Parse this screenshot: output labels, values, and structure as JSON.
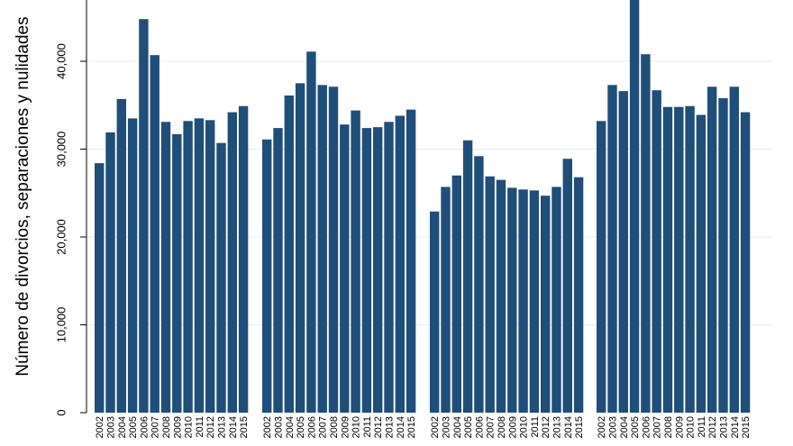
{
  "chart_data": {
    "type": "bar",
    "ylabel": "Número de divorcios, separaciones y nulidades",
    "xlabel": "",
    "title": "",
    "ylim": [
      0,
      47000
    ],
    "yticks": [
      0,
      10000,
      20000,
      30000,
      40000
    ],
    "ytick_labels": [
      "0",
      "10,000",
      "20,000",
      "30,000",
      "40,000"
    ],
    "grid": true,
    "bar_color": "#1f4e79",
    "grid_color": "#e3ecf2",
    "categories": [
      "2002",
      "2003",
      "2004",
      "2005",
      "2006",
      "2007",
      "2008",
      "2009",
      "2010",
      "2011",
      "2012",
      "2013",
      "2014",
      "2015"
    ],
    "groups": [
      {
        "values": [
          28400,
          31900,
          35700,
          33500,
          44800,
          40700,
          33100,
          31700,
          33200,
          33500,
          33300,
          30700,
          34200,
          34900
        ]
      },
      {
        "values": [
          31100,
          32400,
          36100,
          37500,
          41100,
          37300,
          37100,
          32800,
          34400,
          32400,
          32500,
          33100,
          33800,
          34500
        ]
      },
      {
        "values": [
          22900,
          25700,
          27000,
          31000,
          29200,
          26900,
          26500,
          25600,
          25400,
          25300,
          24700,
          25700,
          28900,
          26800
        ]
      },
      {
        "values": [
          33200,
          37300,
          36600,
          47500,
          40800,
          36700,
          34800,
          34800,
          34900,
          33900,
          37100,
          35800,
          37100,
          34200
        ]
      }
    ]
  }
}
